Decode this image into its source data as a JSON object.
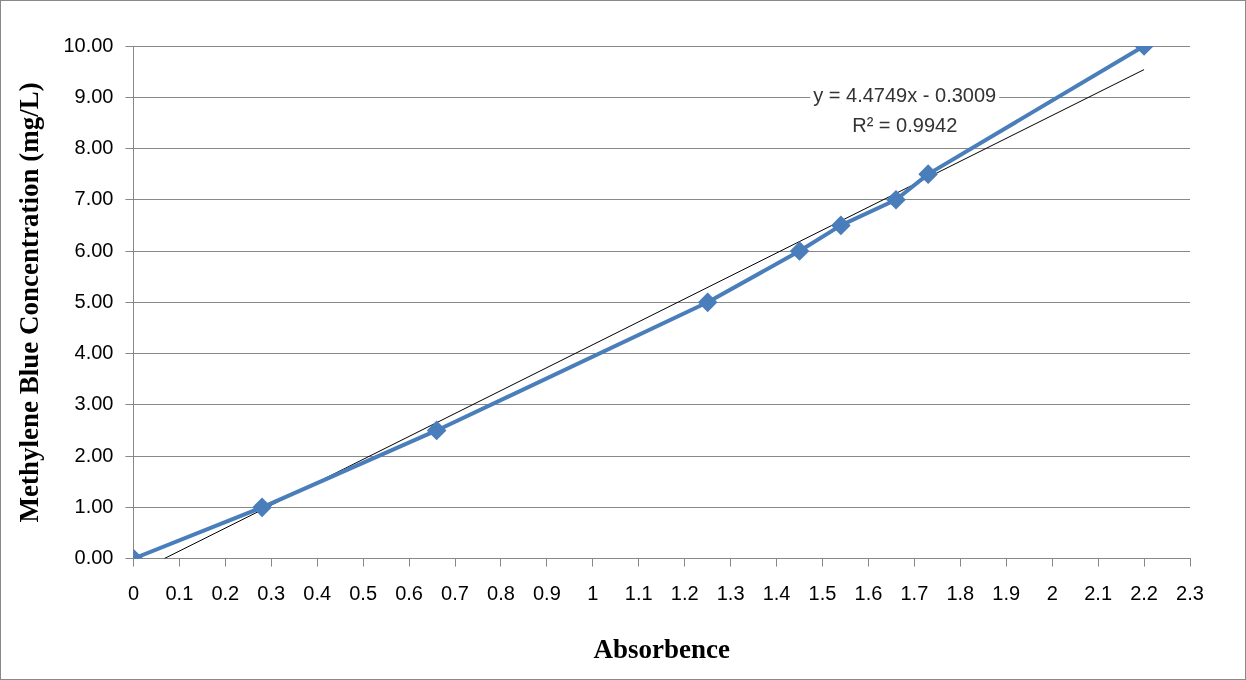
{
  "chart_data": {
    "type": "line",
    "xlabel": "Absorbence",
    "ylabel": "Methylene Blue Concentration (mg/L)",
    "series": [
      {
        "color": "#4a7ebb",
        "marker": "diamond",
        "x": [
          0,
          0.28,
          0.66,
          1.25,
          1.45,
          1.54,
          1.66,
          1.73,
          2.2
        ],
        "values": [
          0,
          1,
          2.5,
          5,
          6,
          6.5,
          7,
          7.5,
          10
        ]
      },
      {
        "color": "#000000",
        "marker": "none",
        "x": [
          0.067,
          2.2
        ],
        "values": [
          0,
          9.54
        ]
      }
    ],
    "annotations": [
      "y = 4.4749x - 0.3009",
      "R² = 0.9942"
    ],
    "xlim": [
      0,
      2.3
    ],
    "xticks": [
      0,
      0.1,
      0.2,
      0.3,
      0.4,
      0.5,
      0.6,
      0.7,
      0.8,
      0.9,
      1,
      1.1,
      1.2,
      1.3,
      1.4,
      1.5,
      1.6,
      1.7,
      1.8,
      1.9,
      2,
      2.1,
      2.2,
      2.3
    ],
    "ylim": [
      0,
      10
    ],
    "yticks": [
      {
        "value": 0,
        "label": "0.00"
      },
      {
        "value": 1,
        "label": "1.00"
      },
      {
        "value": 2,
        "label": "2.00"
      },
      {
        "value": 3,
        "label": "3.00"
      },
      {
        "value": 4,
        "label": "4.00"
      },
      {
        "value": 5,
        "label": "5.00"
      },
      {
        "value": 6,
        "label": "6.00"
      },
      {
        "value": 7,
        "label": "7.00"
      },
      {
        "value": 8,
        "label": "8.00"
      },
      {
        "value": 9,
        "label": "9.00"
      },
      {
        "value": 10,
        "label": "10.00"
      }
    ],
    "grid": "y",
    "legend": false
  }
}
